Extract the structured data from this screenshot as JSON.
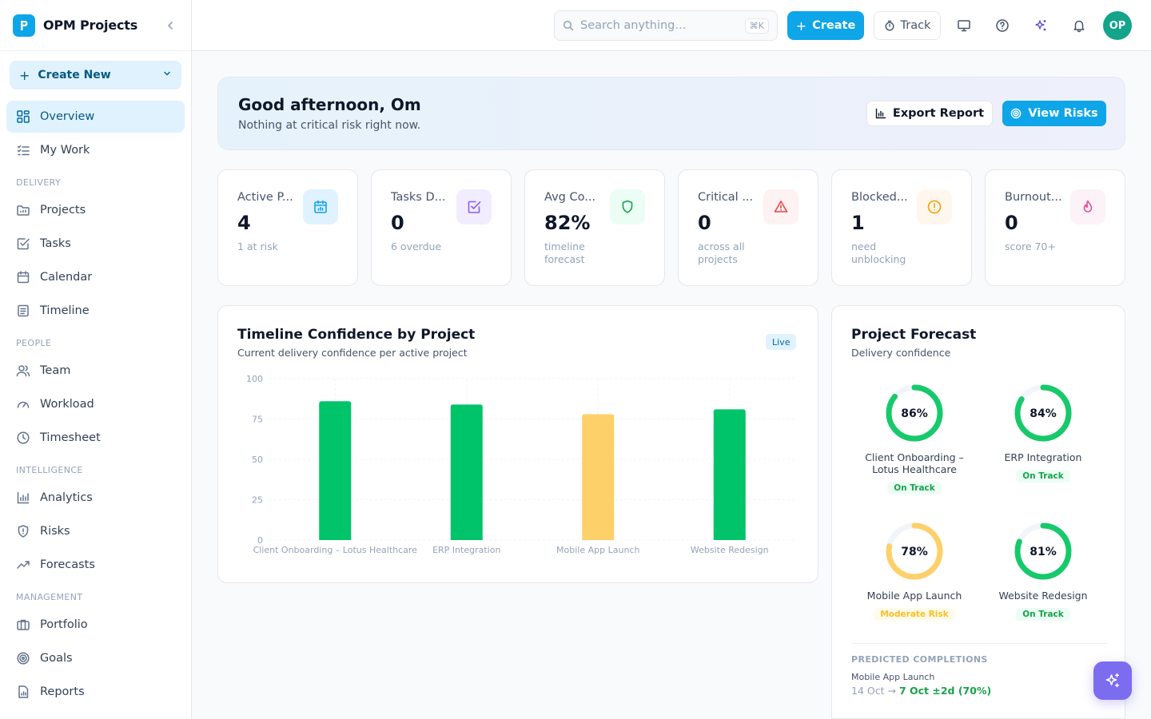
{
  "brand": {
    "name": "OPM Projects"
  },
  "sidebar": {
    "create_label": "Create New",
    "top_items": [
      {
        "label": "Overview",
        "icon": "grid-icon",
        "active": true
      },
      {
        "label": "My Work",
        "icon": "checklist-icon",
        "active": false
      }
    ],
    "sections": [
      {
        "title": "DELIVERY",
        "items": [
          {
            "label": "Projects",
            "icon": "folder-icon"
          },
          {
            "label": "Tasks",
            "icon": "check-square-icon"
          },
          {
            "label": "Calendar",
            "icon": "calendar-icon"
          },
          {
            "label": "Timeline",
            "icon": "timeline-icon"
          }
        ]
      },
      {
        "title": "PEOPLE",
        "items": [
          {
            "label": "Team",
            "icon": "users-icon"
          },
          {
            "label": "Workload",
            "icon": "gauge-icon"
          },
          {
            "label": "Timesheet",
            "icon": "clock-icon"
          }
        ]
      },
      {
        "title": "INTELLIGENCE",
        "items": [
          {
            "label": "Analytics",
            "icon": "bar-chart-icon"
          },
          {
            "label": "Risks",
            "icon": "shield-icon"
          },
          {
            "label": "Forecasts",
            "icon": "trending-up-icon"
          }
        ]
      },
      {
        "title": "MANAGEMENT",
        "items": [
          {
            "label": "Portfolio",
            "icon": "briefcase-icon"
          },
          {
            "label": "Goals",
            "icon": "target-icon"
          },
          {
            "label": "Reports",
            "icon": "report-icon"
          }
        ]
      }
    ]
  },
  "topbar": {
    "search_placeholder": "Search anything...",
    "search_shortcut": "⌘K",
    "create_label": "Create",
    "track_label": "Track",
    "avatar_initials": "OP"
  },
  "greeting": {
    "title": "Good afternoon, Om",
    "subtitle": "Nothing at critical risk right now.",
    "export_label": "Export Report",
    "risks_label": "View Risks"
  },
  "stats": [
    {
      "label": "Active P...",
      "value": "4",
      "note": "1 at risk",
      "icon": "calendar-icon",
      "color": "#0ea5e9",
      "bg": "#e0f2fe"
    },
    {
      "label": "Tasks D...",
      "value": "0",
      "note": "6 overdue",
      "icon": "check-square-icon",
      "color": "#8b5cf6",
      "bg": "#f1edfe"
    },
    {
      "label": "Avg Co...",
      "value": "82%",
      "note": "timeline forecast",
      "icon": "shield-icon",
      "color": "#16a34a",
      "bg": "#ecfdf5"
    },
    {
      "label": "Critical ...",
      "value": "0",
      "note": "across all projects",
      "icon": "warning-icon",
      "color": "#ef4444",
      "bg": "#fef2f2"
    },
    {
      "label": "Blocked...",
      "value": "1",
      "note": "need unblocking",
      "icon": "alert-circle-icon",
      "color": "#f59e0b",
      "bg": "#fff7ed"
    },
    {
      "label": "Burnout...",
      "value": "0",
      "note": "score 70+",
      "icon": "flame-icon",
      "color": "#ec4899",
      "bg": "#fdf2f8"
    }
  ],
  "chart_card": {
    "title": "Timeline Confidence by Project",
    "subtitle": "Current delivery confidence per active project",
    "badge": "Live"
  },
  "chart_data": {
    "type": "bar",
    "categories": [
      "Client Onboarding – Lotus Healthcare",
      "ERP Integration",
      "Mobile App Launch",
      "Website Redesign"
    ],
    "values": [
      86,
      84,
      78,
      81
    ],
    "colors": [
      "#00c46a",
      "#00c46a",
      "#fdd06a",
      "#00c46a"
    ],
    "yticks": [
      "0",
      "25",
      "50",
      "75",
      "100"
    ],
    "ylim": [
      0,
      100
    ],
    "grid": true,
    "title": "",
    "xlabel": "",
    "ylabel": ""
  },
  "forecast": {
    "title": "Project Forecast",
    "subtitle": "Delivery confidence",
    "projects": [
      {
        "name": "Client Onboarding – Lotus Healthcare",
        "value": 86,
        "pct": "86%",
        "status": "On Track",
        "color": "#16c96a"
      },
      {
        "name": "ERP Integration",
        "value": 84,
        "pct": "84%",
        "status": "On Track",
        "color": "#16c96a"
      },
      {
        "name": "Mobile App Launch",
        "value": 78,
        "pct": "78%",
        "status": "Moderate Risk",
        "color": "#fdd06a"
      },
      {
        "name": "Website Redesign",
        "value": 81,
        "pct": "81%",
        "status": "On Track",
        "color": "#16c96a"
      }
    ],
    "predicted_label": "PREDICTED COMPLETIONS",
    "predicted_project": "Mobile App Launch",
    "predicted_from": "14 Oct",
    "predicted_arrow": "→",
    "predicted_to": "7 Oct ±2d (70%)"
  }
}
